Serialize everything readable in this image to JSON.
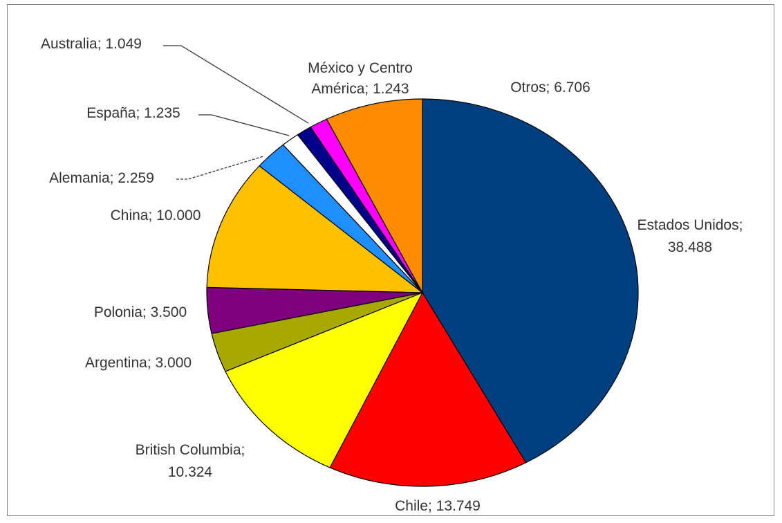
{
  "chart_data": {
    "type": "pie",
    "title": "",
    "slices": [
      {
        "name": "Estados Unidos",
        "label": [
          "Estados Unidos;",
          "38.488"
        ],
        "value": 38488,
        "color": "#003f7f"
      },
      {
        "name": "Chile",
        "label": [
          "Chile; 13.749"
        ],
        "value": 13749,
        "color": "#ff0000"
      },
      {
        "name": "British Columbia",
        "label": [
          "British Columbia;",
          "10.324"
        ],
        "value": 10324,
        "color": "#ffff00"
      },
      {
        "name": "Argentina",
        "label": [
          "Argentina; 3.000"
        ],
        "value": 3000,
        "color": "#a8a800"
      },
      {
        "name": "Polonia",
        "label": [
          "Polonia; 3.500"
        ],
        "value": 3500,
        "color": "#7f007f"
      },
      {
        "name": "China",
        "label": [
          "China; 10.000"
        ],
        "value": 10000,
        "color": "#ffc000"
      },
      {
        "name": "Alemania",
        "label": [
          "Alemania; 2.259"
        ],
        "value": 2259,
        "color": "#1f8fff"
      },
      {
        "name": "España",
        "label": [
          "España; 1.235"
        ],
        "value": 1235,
        "color": "#ffffff"
      },
      {
        "name": "Australia",
        "label": [
          "Australia; 1.049"
        ],
        "value": 1049,
        "color": "#00008b"
      },
      {
        "name": "México y Centro América",
        "label": [
          "México y Centro",
          "América; 1.243"
        ],
        "value": 1243,
        "color": "#ff00ff"
      },
      {
        "name": "Otros",
        "label": [
          "Otros; 6.706"
        ],
        "value": 6706,
        "color": "#ff8c00"
      }
    ]
  }
}
